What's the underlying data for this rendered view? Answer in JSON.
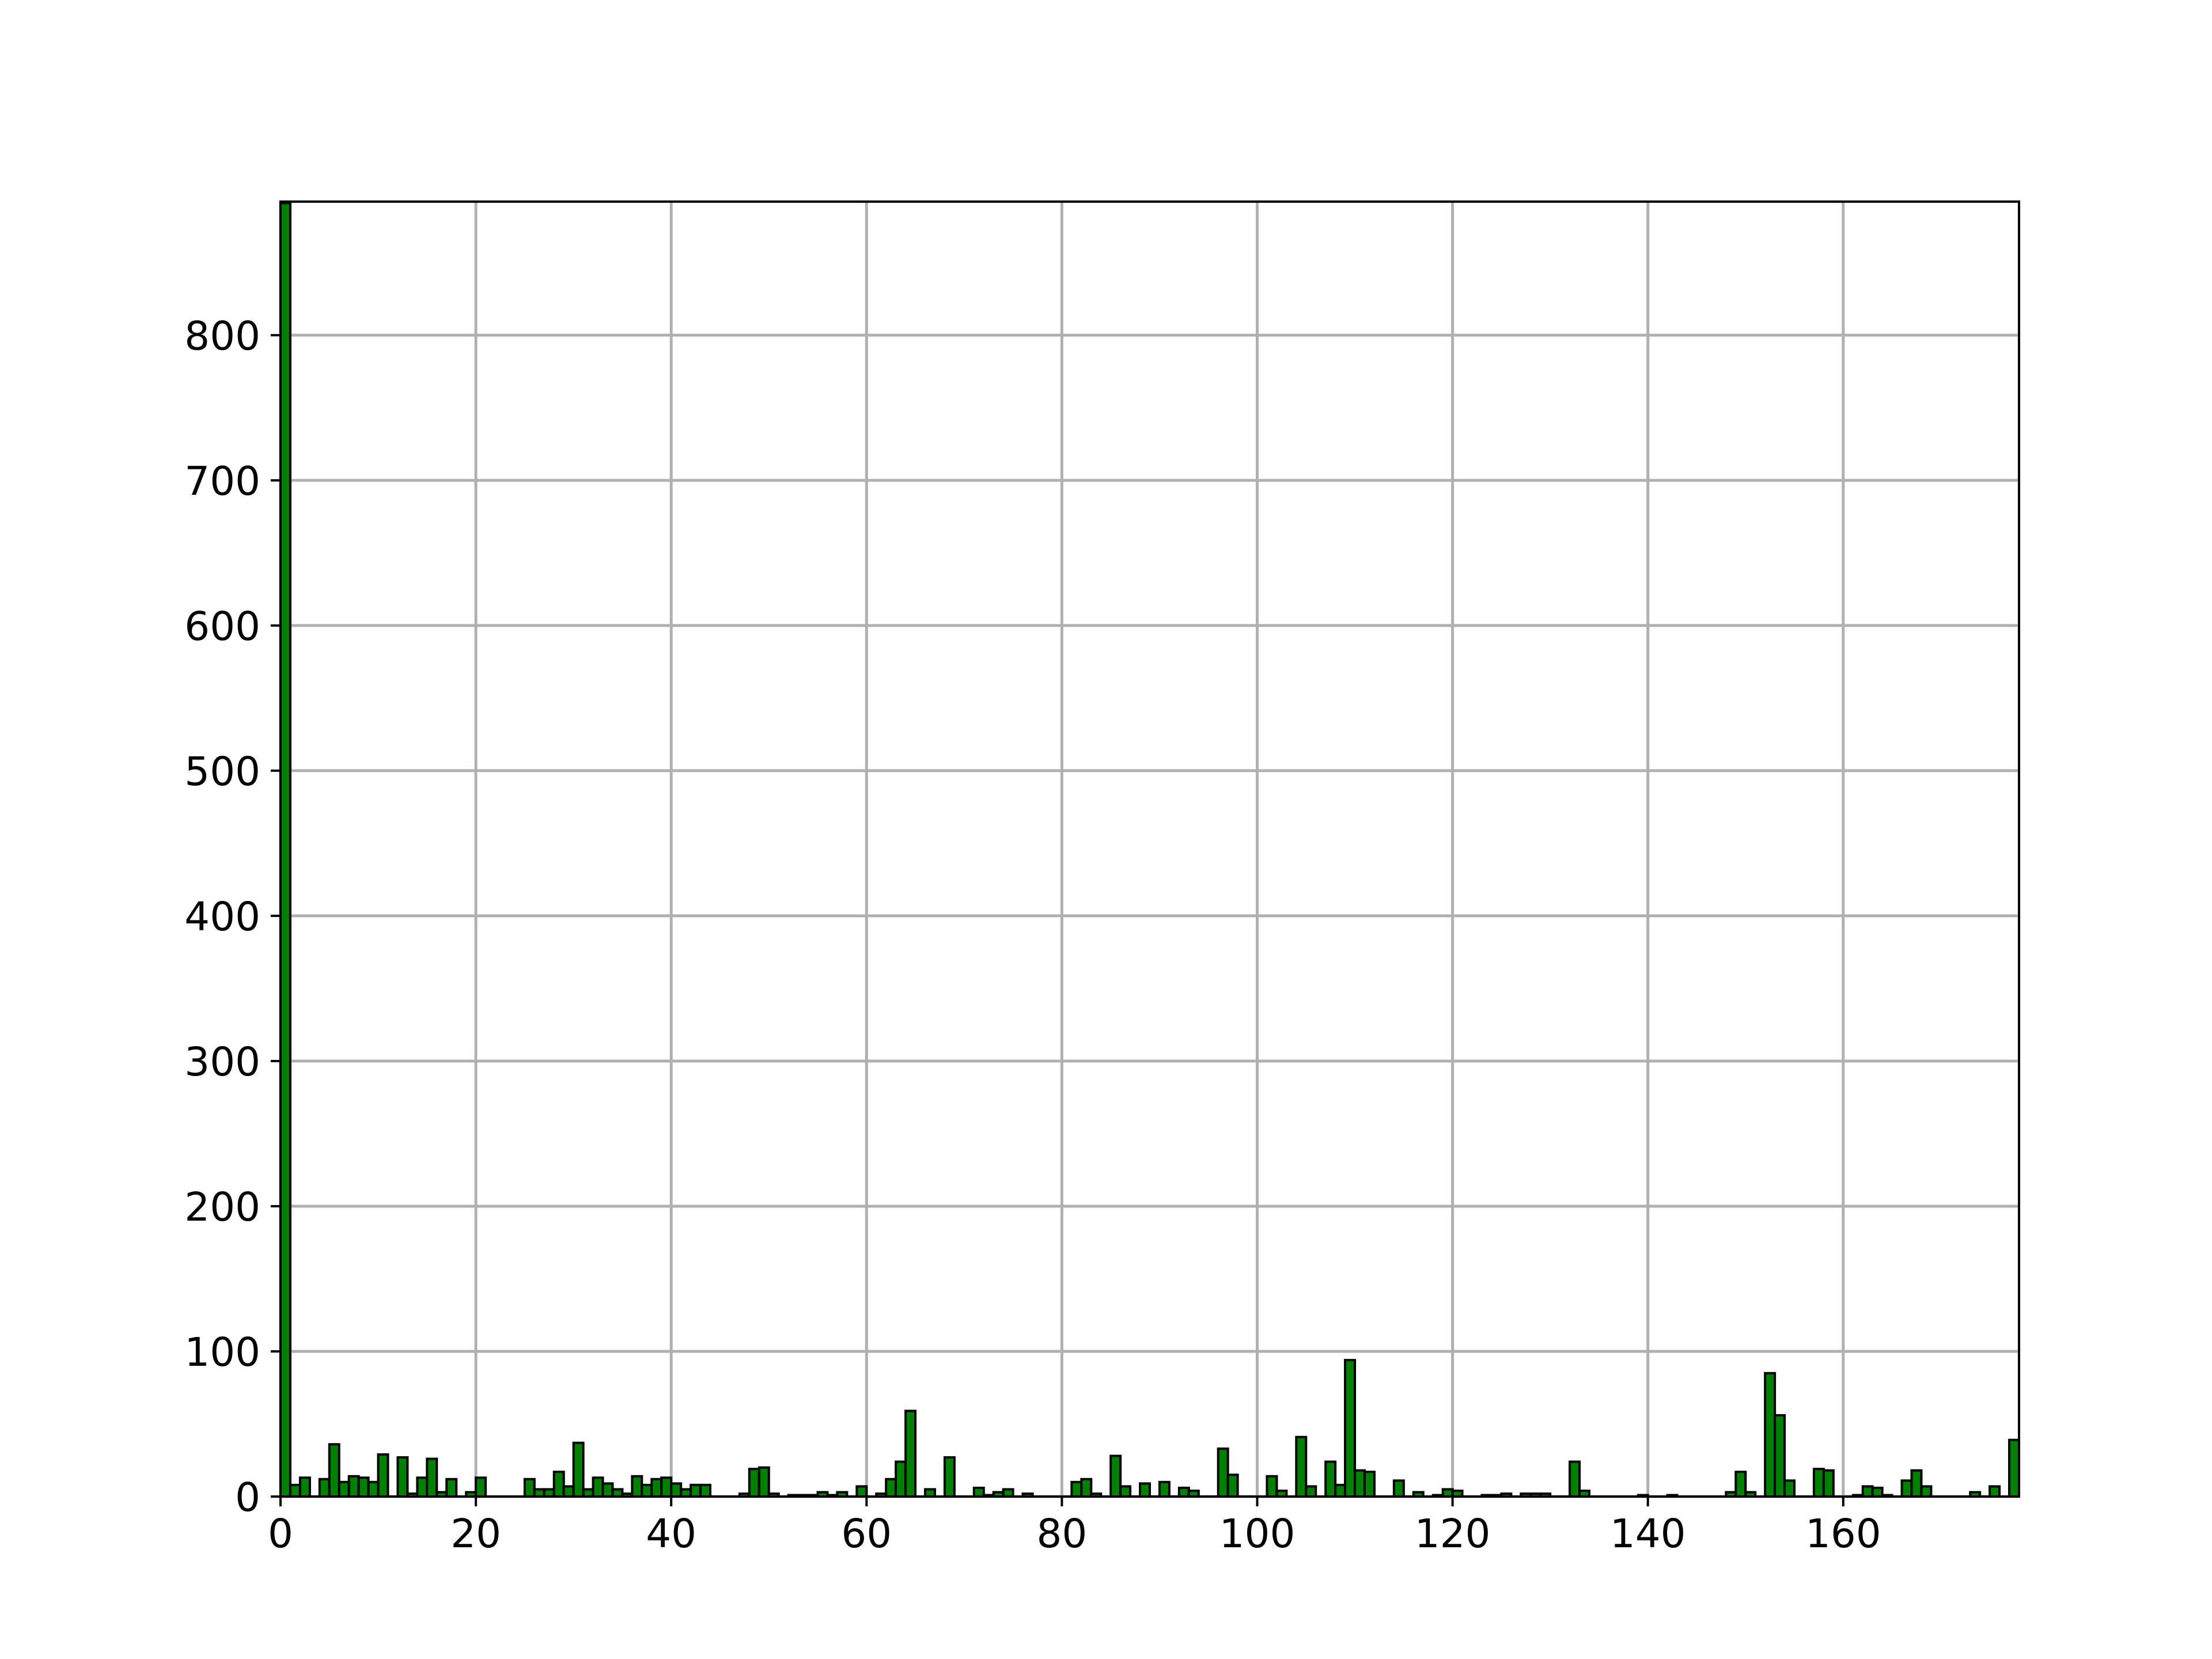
{
  "chart_data": {
    "type": "histogram",
    "bins": [
      0,
      1,
      2,
      3,
      4,
      5,
      6,
      7,
      8,
      9,
      10,
      11,
      12,
      13,
      14,
      15,
      16,
      17,
      18,
      19,
      20,
      21,
      22,
      23,
      24,
      25,
      26,
      27,
      28,
      29,
      30,
      31,
      32,
      33,
      34,
      35,
      36,
      37,
      38,
      39,
      40,
      41,
      42,
      43,
      44,
      45,
      46,
      47,
      48,
      49,
      50,
      51,
      52,
      53,
      54,
      55,
      56,
      57,
      58,
      59,
      60,
      61,
      62,
      63,
      64,
      65,
      66,
      67,
      68,
      69,
      70,
      71,
      72,
      73,
      74,
      75,
      76,
      77,
      78,
      79,
      80,
      81,
      82,
      83,
      84,
      85,
      86,
      87,
      88,
      89,
      90,
      91,
      92,
      93,
      94,
      95,
      96,
      97,
      98,
      99,
      100,
      101,
      102,
      103,
      104,
      105,
      106,
      107,
      108,
      109,
      110,
      111,
      112,
      113,
      114,
      115,
      116,
      117,
      118,
      119,
      120,
      121,
      122,
      123,
      124,
      125,
      126,
      127,
      128,
      129,
      130,
      131,
      132,
      133,
      134,
      135,
      136,
      137,
      138,
      139,
      140,
      141,
      142,
      143,
      144,
      145,
      146,
      147,
      148,
      149,
      150,
      151,
      152,
      153,
      154,
      155,
      156,
      157,
      158,
      159,
      160,
      161,
      162,
      163,
      164,
      165,
      166,
      167,
      168,
      169,
      170,
      171,
      172,
      173,
      174,
      175,
      176,
      177,
      178
    ],
    "counts": [
      891,
      8,
      13,
      0,
      12,
      36,
      10,
      14,
      13,
      10,
      29,
      0,
      27,
      2,
      13,
      26,
      3,
      12,
      0,
      3,
      13,
      0,
      0,
      0,
      0,
      12,
      5,
      5,
      17,
      7,
      37,
      5,
      13,
      9,
      5,
      2,
      14,
      8,
      12,
      13,
      9,
      5,
      8,
      8,
      0,
      0,
      0,
      2,
      19,
      20,
      2,
      0,
      1,
      1,
      1,
      3,
      1,
      3,
      0,
      7,
      0,
      2,
      12,
      24,
      59,
      0,
      5,
      0,
      27,
      0,
      0,
      6,
      1,
      3,
      5,
      0,
      2,
      0,
      0,
      0,
      0,
      10,
      12,
      2,
      0,
      28,
      7,
      0,
      9,
      0,
      10,
      0,
      6,
      4,
      0,
      0,
      33,
      15,
      0,
      0,
      0,
      14,
      4,
      0,
      41,
      7,
      0,
      24,
      8,
      94,
      18,
      17,
      0,
      0,
      11,
      0,
      3,
      0,
      1,
      5,
      4,
      0,
      0,
      1,
      1,
      2,
      0,
      2,
      2,
      2,
      0,
      0,
      24,
      4,
      0,
      0,
      0,
      0,
      0,
      1,
      0,
      0,
      1,
      0,
      0,
      0,
      0,
      0,
      3,
      17,
      3,
      0,
      85,
      56,
      11,
      0,
      0,
      19,
      18,
      0,
      0,
      1,
      7,
      6,
      1,
      0,
      11,
      18,
      7,
      0,
      0,
      0,
      0,
      3,
      0,
      7,
      0,
      39
    ],
    "color": "#008000",
    "edgecolor": "#000000",
    "xlim": [
      0,
      178
    ],
    "ylim": [
      0,
      892
    ],
    "xticks": [
      0,
      20,
      40,
      60,
      80,
      100,
      120,
      140,
      160
    ],
    "yticks": [
      0,
      100,
      200,
      300,
      400,
      500,
      600,
      700,
      800
    ],
    "grid": true
  }
}
